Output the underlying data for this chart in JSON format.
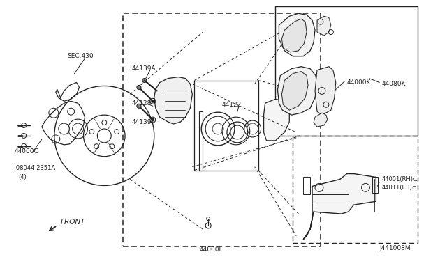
{
  "bg_color": "#ffffff",
  "lc": "#555555",
  "lc_dark": "#222222",
  "tc": "#222222",
  "fig_width": 6.4,
  "fig_height": 3.72,
  "dpi": 100,
  "labels": {
    "sec430": "SEC.430",
    "44000C": "44000C",
    "bolt": "¦08044-2351A\n(4)",
    "44139A": "44139A",
    "44128": "44128",
    "44139": "44139",
    "44122": "44122",
    "44000L": "44000L",
    "44000K": "44000K",
    "44080K": "44080K",
    "44001RH": "44001(RH)⊂\n44011(LH)⊂",
    "front": "FRONT",
    "diagram_id": "J441008M"
  }
}
